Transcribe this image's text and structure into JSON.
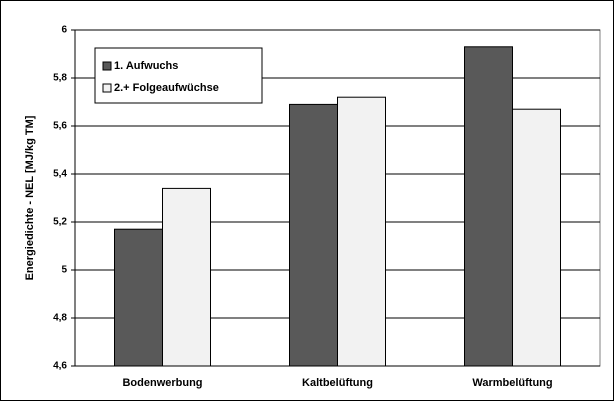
{
  "chart_data": {
    "type": "bar",
    "y_label": "Energiedichte - NEL [MJ/kg TM]",
    "categories": [
      "Bodenwerbung",
      "Kaltbelüftung",
      "Warmbelüftung"
    ],
    "series": [
      {
        "name": "1. Aufwuchs",
        "color": "#595959",
        "values": [
          5.17,
          5.69,
          5.93
        ]
      },
      {
        "name": "2.+ Folgeaufwüchse",
        "color": "#f2f2f2",
        "values": [
          5.34,
          5.72,
          5.67
        ]
      }
    ],
    "ylim": [
      4.6,
      6
    ],
    "yticks": [
      {
        "value": 4.6,
        "label": "4,6"
      },
      {
        "value": 4.8,
        "label": "4,8"
      },
      5,
      {
        "value": 5.2,
        "label": "5,2"
      },
      {
        "value": 5.4,
        "label": "5,4"
      },
      {
        "value": 5.6,
        "label": "5,6"
      },
      {
        "value": 5.8,
        "label": "5,8"
      },
      6
    ],
    "grid": true
  }
}
